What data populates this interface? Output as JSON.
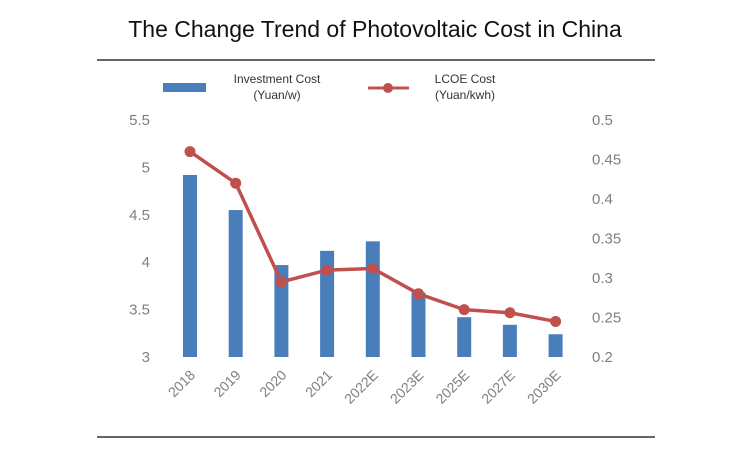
{
  "chart_data": {
    "type": "bar",
    "title": "The Change Trend of Photovoltaic Cost in China",
    "categories": [
      "2018",
      "2019",
      "2020",
      "2021",
      "2022E",
      "2023E",
      "2025E",
      "2027E",
      "2030E"
    ],
    "series": [
      {
        "name": "Investment Cost",
        "unit": "(Yuan/w)",
        "type": "bar",
        "axis": "left",
        "color": "#4a7ebb",
        "values": [
          4.92,
          4.55,
          3.97,
          4.12,
          4.22,
          3.68,
          3.42,
          3.34,
          3.24
        ]
      },
      {
        "name": "LCOE Cost",
        "unit": "(Yuan/kwh)",
        "type": "line",
        "axis": "right",
        "color": "#c0504d",
        "values": [
          0.46,
          0.42,
          0.295,
          0.31,
          0.312,
          0.28,
          0.26,
          0.256,
          0.245
        ]
      }
    ],
    "y_left": {
      "min": 3,
      "max": 5.5,
      "ticks": [
        "3",
        "3.5",
        "4",
        "4.5",
        "5",
        "5.5"
      ]
    },
    "y_right": {
      "min": 0.2,
      "max": 0.5,
      "ticks": [
        "0.2",
        "0.25",
        "0.3",
        "0.35",
        "0.4",
        "0.45",
        "0.5"
      ]
    },
    "grid": false,
    "legend_position": "top"
  }
}
